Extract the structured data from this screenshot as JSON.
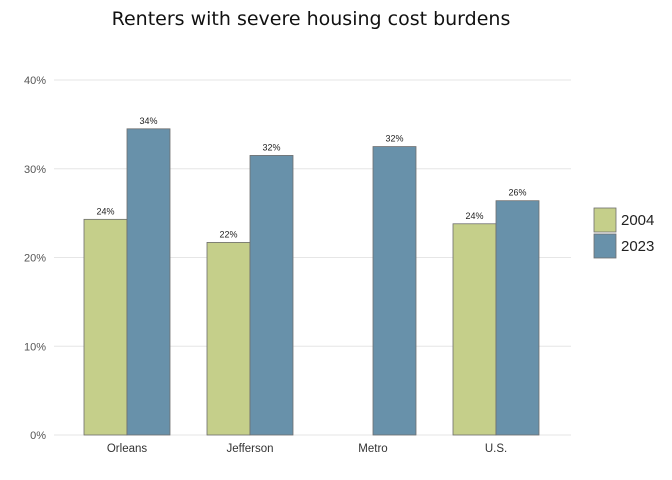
{
  "chart_data": {
    "type": "bar",
    "title": "Renters with severe housing cost burdens",
    "xlabel": "",
    "ylabel": "",
    "categories": [
      "Orleans",
      "Jefferson",
      "Metro",
      "U.S."
    ],
    "series": [
      {
        "name": "2004",
        "color": "#c5cf8a",
        "values": [
          24.3,
          21.7,
          0,
          23.8
        ],
        "labels": [
          "24%",
          "22%",
          "",
          "24%"
        ]
      },
      {
        "name": "2023",
        "color": "#6891aa",
        "values": [
          34.5,
          31.5,
          32.5,
          26.4
        ],
        "labels": [
          "34%",
          "32%",
          "32%",
          "26%"
        ]
      }
    ],
    "ylim": [
      0,
      40
    ],
    "yticks": [
      "0%",
      "10%",
      "20%",
      "30%",
      "40%"
    ],
    "grid": true,
    "legend_position": "right"
  }
}
